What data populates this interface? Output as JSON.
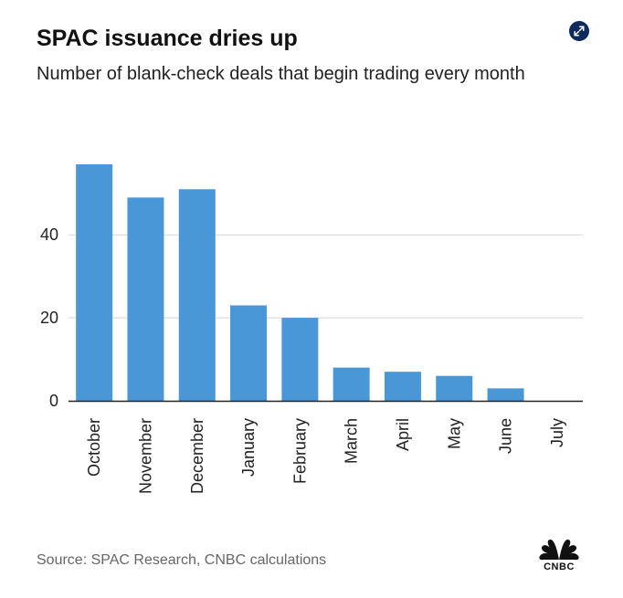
{
  "header": {
    "title": "SPAC issuance dries up",
    "subtitle": "Number of blank-check deals that begin trading every month"
  },
  "footer": {
    "source": "Source: SPAC Research, CNBC calculations",
    "logo_text": "CNBC"
  },
  "icons": {
    "expand": "expand-icon",
    "logo": "cnbc-peacock-logo"
  },
  "colors": {
    "bar": "#4a97d8",
    "grid": "#d5d5d5",
    "axis": "#222222",
    "text": "#222222"
  },
  "chart_data": {
    "type": "bar",
    "title": "SPAC issuance dries up",
    "subtitle": "Number of blank-check deals that begin trading every month",
    "categories": [
      "October",
      "November",
      "December",
      "January",
      "February",
      "March",
      "April",
      "May",
      "June",
      "July"
    ],
    "values": [
      57,
      49,
      51,
      23,
      20,
      8,
      7,
      6,
      3,
      0
    ],
    "xlabel": "",
    "ylabel": "",
    "ylim": [
      0,
      57
    ],
    "yticks": [
      0,
      20,
      40
    ],
    "grid": true,
    "legend": "none"
  }
}
